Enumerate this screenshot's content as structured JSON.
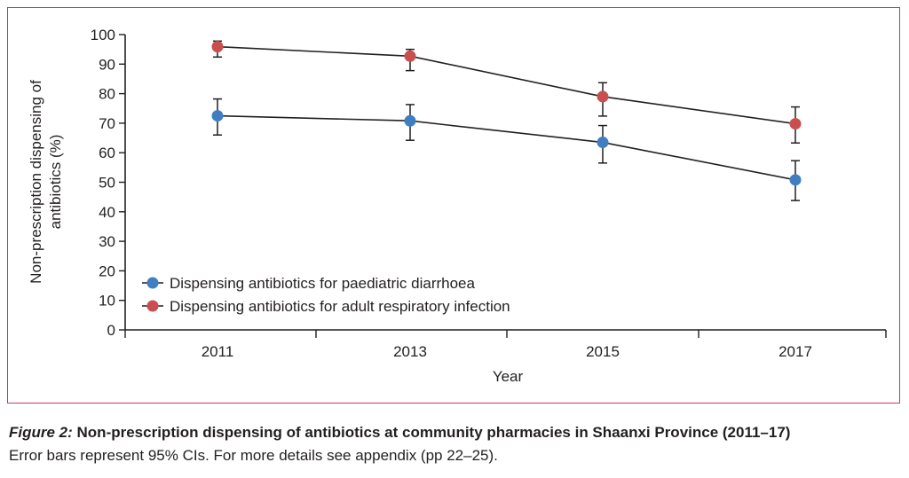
{
  "caption": {
    "label": "Figure 2:",
    "title": " Non-prescription dispensing of antibiotics at community pharmacies in Shaanxi Province (2011–17)",
    "note": "Error bars represent 95% CIs. For more details see appendix (pp 22–25)."
  },
  "colors": {
    "frame": "#c23b63",
    "paediatric": "#3f7fc1",
    "adult": "#c94f4f",
    "line": "#231f20"
  },
  "chart_data": {
    "type": "line",
    "title": "",
    "xlabel": "Year",
    "ylabel_lines": [
      "Non-prescription dispensing of",
      "antibiotics (%)"
    ],
    "x": [
      2011,
      2013,
      2015,
      2017
    ],
    "x_tick_labels": [
      "2011",
      "2013",
      "2015",
      "2017"
    ],
    "ylim": [
      0,
      100
    ],
    "y_ticks": [
      0,
      10,
      20,
      30,
      40,
      50,
      60,
      70,
      80,
      90,
      100
    ],
    "grid": false,
    "legend_position": "bottom-left",
    "series": [
      {
        "name": "Dispensing antibiotics for paediatric diarrhoea",
        "color_key": "paediatric",
        "values": [
          72.5,
          70.8,
          63.5,
          50.8
        ],
        "ci_low": [
          66.0,
          64.2,
          56.5,
          43.8
        ],
        "ci_high": [
          78.2,
          76.3,
          69.2,
          57.3
        ]
      },
      {
        "name": "Dispensing antibiotics for adult respiratory infection",
        "color_key": "adult",
        "values": [
          95.9,
          92.7,
          79.0,
          69.8
        ],
        "ci_low": [
          92.4,
          87.8,
          72.4,
          63.3
        ],
        "ci_high": [
          97.8,
          95.0,
          83.7,
          75.5
        ]
      }
    ]
  }
}
